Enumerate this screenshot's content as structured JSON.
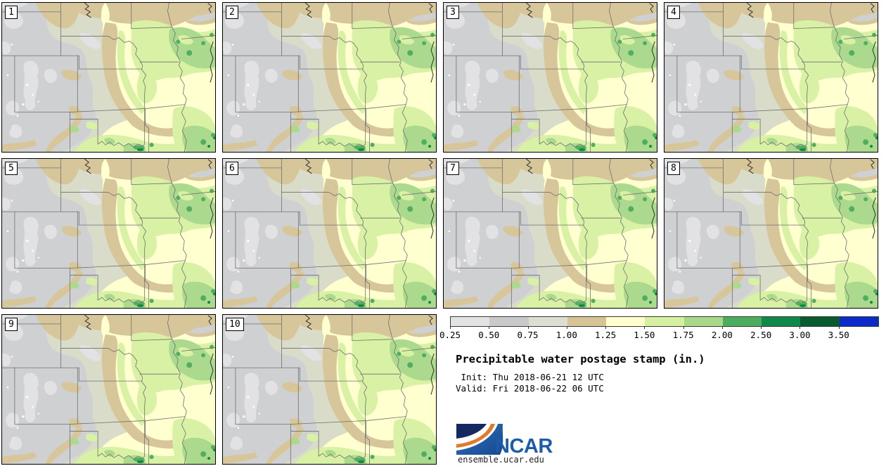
{
  "figure": {
    "title": "Precipitable water postage stamp (in.)",
    "init_label": " Init: Thu 2018-06-21 12 UTC",
    "valid_label": "Valid: Fri 2018-06-22 06 UTC",
    "logo_text": "NCAR",
    "site_url": "ensemble.ucar.edu"
  },
  "panels": [
    {
      "label": "1"
    },
    {
      "label": "2"
    },
    {
      "label": "3"
    },
    {
      "label": "4"
    },
    {
      "label": "5"
    },
    {
      "label": "6"
    },
    {
      "label": "7"
    },
    {
      "label": "8"
    },
    {
      "label": "9"
    },
    {
      "label": "10"
    }
  ],
  "legend": {
    "tick_labels": [
      "0.25",
      "0.50",
      "0.75",
      "1.00",
      "1.25",
      "1.50",
      "1.75",
      "2.00",
      "2.50",
      "3.00",
      "3.50"
    ],
    "segment_colors": [
      "#e3e3e3",
      "#c9c9cb",
      "#dcded1",
      "#d7c495",
      "#ffffcd",
      "#d5f0a1",
      "#a9d88b",
      "#4bad5d",
      "#108948",
      "#095b2e",
      "#0c2bc8"
    ]
  },
  "chart_data": {
    "type": "heatmap",
    "title": "Precipitable water postage stamp (in.)",
    "units": "inches",
    "init_time": "Thu 2018-06-21 12 UTC",
    "valid_time": "Fri 2018-06-22 06 UTC",
    "ensemble_members": [
      "1",
      "2",
      "3",
      "4",
      "5",
      "6",
      "7",
      "8",
      "9",
      "10"
    ],
    "n_panels": 10,
    "grid": {
      "rows": 3,
      "cols": 4
    },
    "colorbar": {
      "orientation": "horizontal",
      "position": "bottom-right",
      "levels_in": [
        0.25,
        0.5,
        0.75,
        1.0,
        1.25,
        1.5,
        1.75,
        2.0,
        2.5,
        3.0,
        3.5
      ],
      "colors": [
        "#e3e3e3",
        "#c9c9cb",
        "#dcded1",
        "#d7c495",
        "#ffffcd",
        "#d5f0a1",
        "#a9d88b",
        "#4bad5d",
        "#108948",
        "#095b2e",
        "#0c2bc8"
      ]
    },
    "region": "Central United States (WY/CO/NM east through SD/NE/KS/OK/TX to MN/IA/MO/AR/WI/IL)",
    "field_pattern": "Low PW (gray, 0.5-1.0 in) over Rockies/High Plains; tan band (1.0-1.25 in) arcing from the Dakotas through central Kansas into Missouri; 1.25-2.0 in (yellow to green) over the eastern plains, Iowa, Missouri, Arkansas and Illinois with local 2.0-3.0 in maxima near the Red River and upper Mississippi valley",
    "source_text": "ensemble.ucar.edu"
  }
}
